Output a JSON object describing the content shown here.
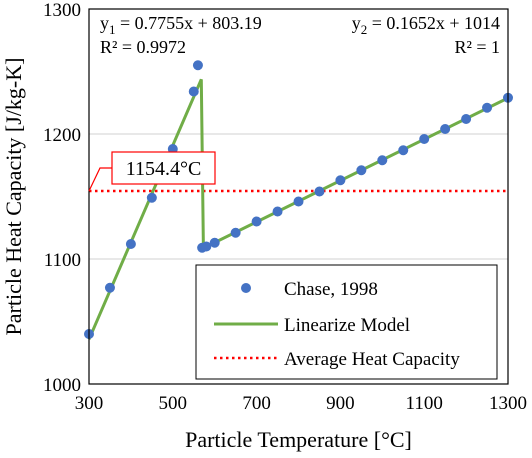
{
  "chart_data": {
    "type": "scatter",
    "xlabel": "Particle Temperature [°C]",
    "ylabel": "Particle Heat Capacity [J/kg-K]",
    "xlim": [
      300,
      1300
    ],
    "ylim": [
      1000,
      1300
    ],
    "xticks": [
      300,
      500,
      700,
      900,
      1100,
      1300
    ],
    "yticks": [
      1000,
      1100,
      1200,
      1300
    ],
    "grid": "horizontal",
    "legend_position": "bottom-right",
    "series": [
      {
        "name": "Chase, 1998",
        "kind": "markers",
        "color": "#4472C4",
        "x": [
          300,
          350,
          400,
          450,
          500,
          550,
          560,
          570,
          580,
          600,
          650,
          700,
          750,
          800,
          850,
          900,
          950,
          1000,
          1050,
          1100,
          1150,
          1200,
          1250,
          1300
        ],
        "y": [
          1040,
          1077,
          1112,
          1149,
          1188,
          1234,
          1255,
          1109,
          1110,
          1113,
          1121,
          1130,
          1138,
          1146,
          1154,
          1163,
          1171,
          1179,
          1187,
          1196,
          1204,
          1212,
          1221,
          1229
        ]
      },
      {
        "name": "Linearize Model",
        "kind": "line",
        "color": "#70AD47",
        "x": [
          300,
          568,
          573,
          1300
        ],
        "y": [
          1035.8,
          1243.7,
          1108.7,
          1228.8
        ]
      },
      {
        "name": "Average Heat Capacity",
        "kind": "dotted-line",
        "color": "#FF0000",
        "x": [
          300,
          1300
        ],
        "y": [
          1154.4,
          1154.4
        ]
      }
    ],
    "annotations": {
      "eq1": {
        "line1_prefix": "y",
        "line1_sub": "1",
        "line1_rest": " = 0.7755x + 803.19",
        "line2": "R² = 0.9972"
      },
      "eq2": {
        "line1_prefix": "y",
        "line1_sub": "2",
        "line1_rest": " = 0.1652x  + 1014",
        "line2": "R² = 1"
      },
      "callout": {
        "text": "1154.4°C",
        "color": "#FF0000"
      }
    }
  }
}
